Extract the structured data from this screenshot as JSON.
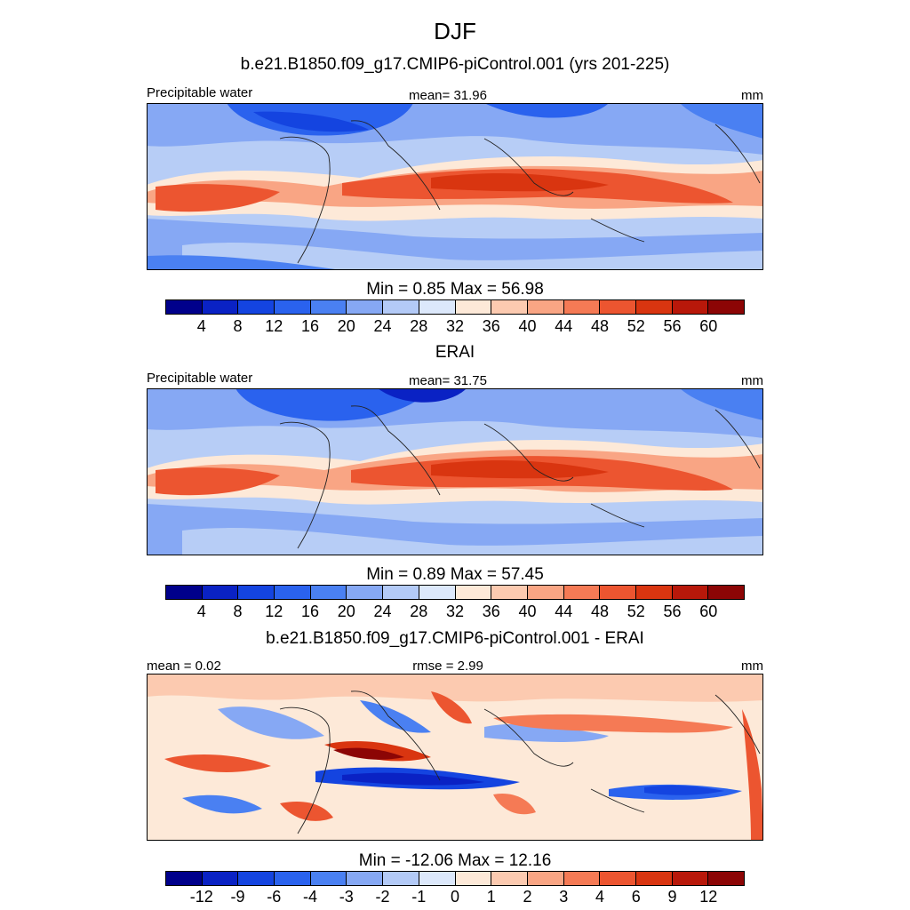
{
  "season": "DJF",
  "top_panel": {
    "title": "b.e21.B1850.f09_g17.CMIP6-piControl.001 (yrs 201-225)",
    "left_label": "Precipitable water",
    "center_label": "mean=  31.96",
    "right_label": "mm",
    "minmax": "Min =   0.85 Max =  56.98"
  },
  "middle_panel": {
    "title": "ERAI",
    "left_label": "Precipitable water",
    "center_label": "mean=  31.75",
    "right_label": "mm",
    "minmax": "Min =   0.89 Max =  57.45"
  },
  "bottom_panel": {
    "title": "b.e21.B1850.f09_g17.CMIP6-piControl.001 - ERAI",
    "left_label": "mean =   0.02",
    "center_label": "rmse =   2.99",
    "right_label": "mm",
    "minmax": "Min = -12.06 Max =  12.16"
  },
  "colorbar_abs": {
    "ticks": [
      "4",
      "8",
      "12",
      "16",
      "20",
      "24",
      "28",
      "32",
      "36",
      "40",
      "44",
      "48",
      "52",
      "56",
      "60"
    ],
    "colors": [
      "#00008b",
      "#0a22c4",
      "#1444e0",
      "#2a62ee",
      "#4a80f2",
      "#86a8f4",
      "#b3caf7",
      "#dce8fb",
      "#fde9d8",
      "#fccab0",
      "#f9a584",
      "#f57a55",
      "#ec5530",
      "#d93510",
      "#b8180a",
      "#8c0505"
    ]
  },
  "colorbar_diff": {
    "ticks": [
      "-12",
      "-9",
      "-6",
      "-4",
      "-3",
      "-2",
      "-1",
      "0",
      "1",
      "2",
      "3",
      "4",
      "6",
      "9",
      "12"
    ],
    "colors": [
      "#00008b",
      "#0a22c4",
      "#1444e0",
      "#2a62ee",
      "#4a80f2",
      "#86a8f4",
      "#b3caf7",
      "#dce8fb",
      "#fde9d8",
      "#fccab0",
      "#f9a584",
      "#f57a55",
      "#ec5530",
      "#d93510",
      "#b8180a",
      "#8c0505"
    ]
  }
}
